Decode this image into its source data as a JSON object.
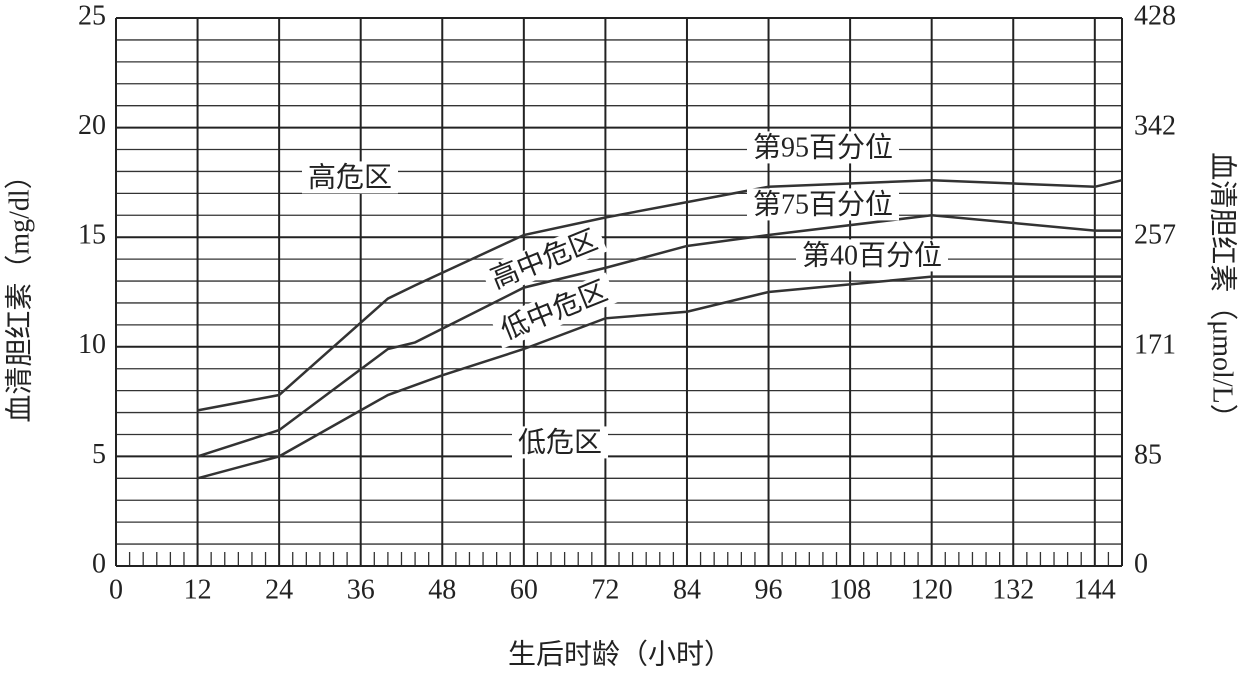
{
  "chart_data": {
    "type": "line",
    "x_label": "生后时龄（小时）",
    "y_label": "血清胆红素（mg/dl）",
    "y2_label": "血清胆红素（μmol/L）",
    "xlim": [
      0,
      148
    ],
    "xticks": [
      0,
      12,
      24,
      36,
      48,
      60,
      72,
      84,
      96,
      108,
      120,
      132,
      144
    ],
    "ylim": [
      0,
      25
    ],
    "yticks": [
      0,
      5,
      10,
      15,
      20,
      25
    ],
    "y2lim": [
      0,
      428
    ],
    "y2ticks": [
      0,
      85,
      171,
      257,
      342,
      428
    ],
    "grid": true,
    "ygrid_step": 1,
    "xminor_step": 2,
    "series": [
      {
        "name": "第95百分位",
        "color": "#333333",
        "x": [
          12,
          24,
          40,
          44,
          60,
          72,
          84,
          96,
          120,
          144,
          148
        ],
        "values": [
          7.1,
          7.8,
          12.2,
          12.8,
          15.1,
          15.9,
          16.6,
          17.3,
          17.6,
          17.3,
          17.6
        ]
      },
      {
        "name": "第75百分位",
        "color": "#333333",
        "x": [
          12,
          24,
          40,
          44,
          60,
          72,
          84,
          96,
          120,
          144,
          148
        ],
        "values": [
          5.0,
          6.2,
          9.9,
          10.2,
          12.7,
          13.6,
          14.6,
          15.1,
          16.0,
          15.3,
          15.3
        ]
      },
      {
        "name": "第40百分位",
        "color": "#333333",
        "x": [
          12,
          24,
          40,
          48,
          60,
          72,
          84,
          96,
          120,
          148
        ],
        "values": [
          4.0,
          5.0,
          7.8,
          8.7,
          9.9,
          11.3,
          11.6,
          12.5,
          13.2,
          13.2
        ]
      }
    ],
    "annotations": [
      "高危区",
      "高中危区",
      "低中危区",
      "低危区"
    ]
  }
}
